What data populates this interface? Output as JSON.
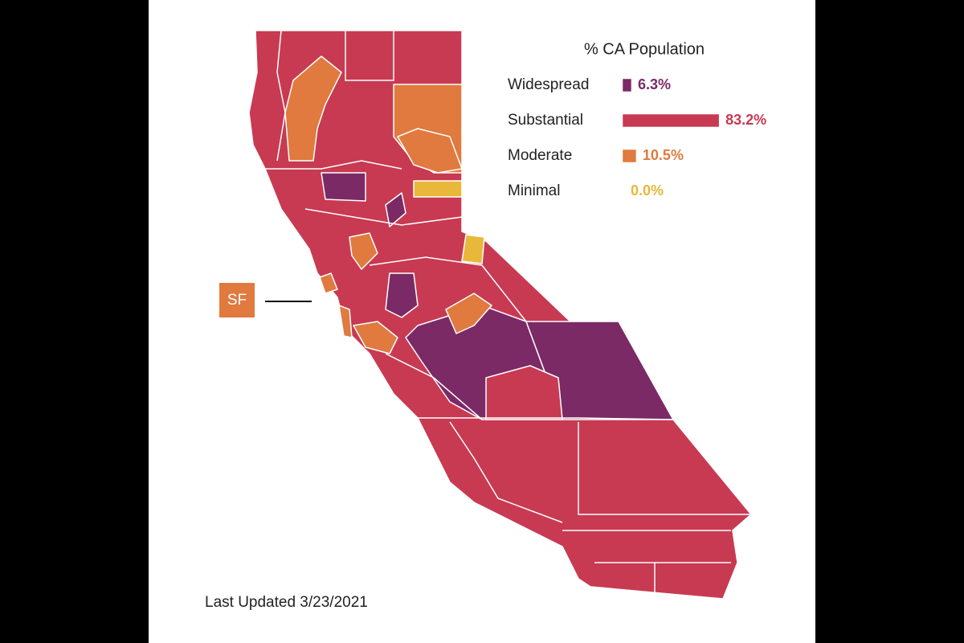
{
  "chart_data": {
    "type": "bar",
    "orientation": "horizontal",
    "title": "% CA Population",
    "categories": [
      "Widespread",
      "Substantial",
      "Moderate",
      "Minimal"
    ],
    "values": [
      6.3,
      83.2,
      10.5,
      0.0
    ],
    "value_labels": [
      "6.3%",
      "83.2%",
      "10.5%",
      "0.0%"
    ],
    "colors": [
      "#7b2a66",
      "#c83a52",
      "#e07a3e",
      "#e8b83a"
    ]
  },
  "map": {
    "label": "SF",
    "footnote": "Last Updated 3/23/2021"
  }
}
